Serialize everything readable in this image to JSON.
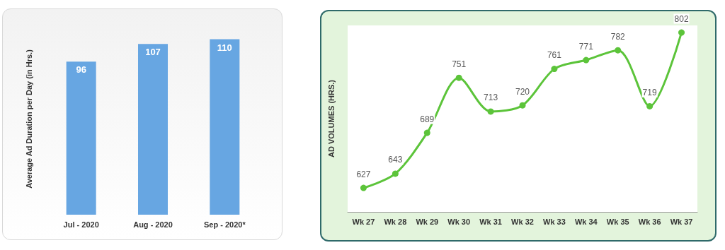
{
  "chart_data": [
    {
      "type": "bar",
      "ylabel": "Average Ad Duration per Day (in Hrs.)",
      "categories": [
        "Jul - 2020",
        "Aug - 2020",
        "Sep - 2020*"
      ],
      "values": [
        96,
        107,
        110
      ],
      "color": "#67a6e2",
      "data_labels": true
    },
    {
      "type": "line",
      "ylabel": "AD VOLUMES (HRS.)",
      "categories": [
        "Wk 27",
        "Wk 28",
        "Wk 29",
        "Wk 30",
        "Wk 31",
        "Wk 32",
        "Wk 33",
        "Wk 34",
        "Wk 35",
        "Wk 36",
        "Wk 37"
      ],
      "values": [
        627,
        643,
        689,
        751,
        713,
        720,
        761,
        771,
        782,
        719,
        802
      ],
      "color": "#5cc43a",
      "marker": "circle",
      "line_style": "solid",
      "data_labels": true
    }
  ]
}
